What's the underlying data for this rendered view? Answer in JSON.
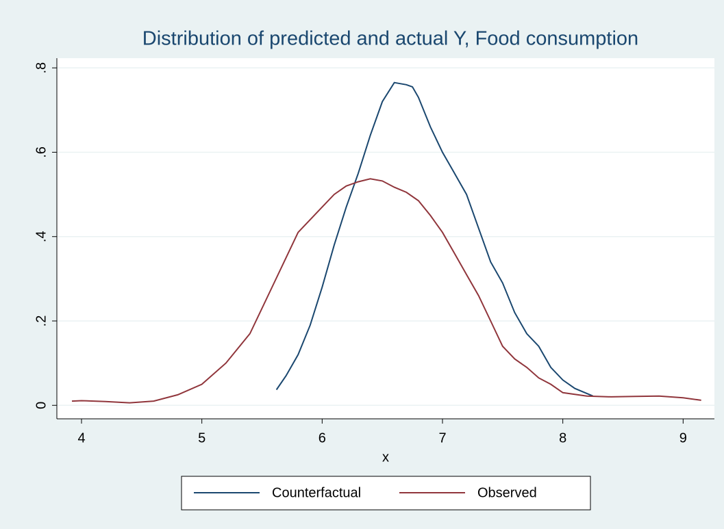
{
  "chart_data": {
    "type": "line",
    "title": "Distribution of predicted and actual Y, Food consumption",
    "x_label": "x",
    "xlim": [
      3.795,
      9.26
    ],
    "xticks": [
      4,
      5,
      6,
      7,
      8,
      9
    ],
    "ylim": [
      -0.032,
      0.823
    ],
    "yticks": [
      0,
      {
        "value": 0.2,
        "label": ".2"
      },
      {
        "value": 0.4,
        "label": ".4"
      },
      {
        "value": 0.6,
        "label": ".6"
      },
      {
        "value": 0.8,
        "label": ".8"
      }
    ],
    "grid": true,
    "legend": "bottom",
    "series": [
      {
        "name": "Counterfactual",
        "color": "#1a476f",
        "x": [
          5.62,
          5.7,
          5.8,
          5.9,
          6.0,
          6.1,
          6.2,
          6.3,
          6.4,
          6.5,
          6.6,
          6.7,
          6.75,
          6.8,
          6.9,
          7.0,
          7.1,
          7.2,
          7.3,
          7.4,
          7.5,
          7.6,
          7.7,
          7.8,
          7.9,
          8.0,
          8.1,
          8.25
        ],
        "values": [
          0.037,
          0.07,
          0.12,
          0.19,
          0.28,
          0.38,
          0.47,
          0.55,
          0.64,
          0.72,
          0.765,
          0.76,
          0.755,
          0.73,
          0.66,
          0.6,
          0.55,
          0.5,
          0.42,
          0.34,
          0.29,
          0.22,
          0.17,
          0.14,
          0.09,
          0.06,
          0.04,
          0.022
        ]
      },
      {
        "name": "Observed",
        "color": "#90353b",
        "x": [
          3.92,
          4.0,
          4.2,
          4.4,
          4.6,
          4.8,
          5.0,
          5.2,
          5.4,
          5.6,
          5.8,
          6.0,
          6.1,
          6.2,
          6.3,
          6.4,
          6.5,
          6.6,
          6.7,
          6.8,
          6.9,
          7.0,
          7.1,
          7.2,
          7.3,
          7.4,
          7.5,
          7.6,
          7.7,
          7.8,
          7.9,
          8.0,
          8.2,
          8.4,
          8.6,
          8.8,
          9.0,
          9.15
        ],
        "values": [
          0.01,
          0.011,
          0.009,
          0.006,
          0.01,
          0.025,
          0.05,
          0.1,
          0.17,
          0.29,
          0.41,
          0.47,
          0.5,
          0.52,
          0.53,
          0.537,
          0.532,
          0.517,
          0.505,
          0.485,
          0.45,
          0.41,
          0.36,
          0.31,
          0.26,
          0.2,
          0.14,
          0.11,
          0.09,
          0.065,
          0.05,
          0.03,
          0.022,
          0.02,
          0.021,
          0.022,
          0.018,
          0.012
        ]
      }
    ]
  }
}
